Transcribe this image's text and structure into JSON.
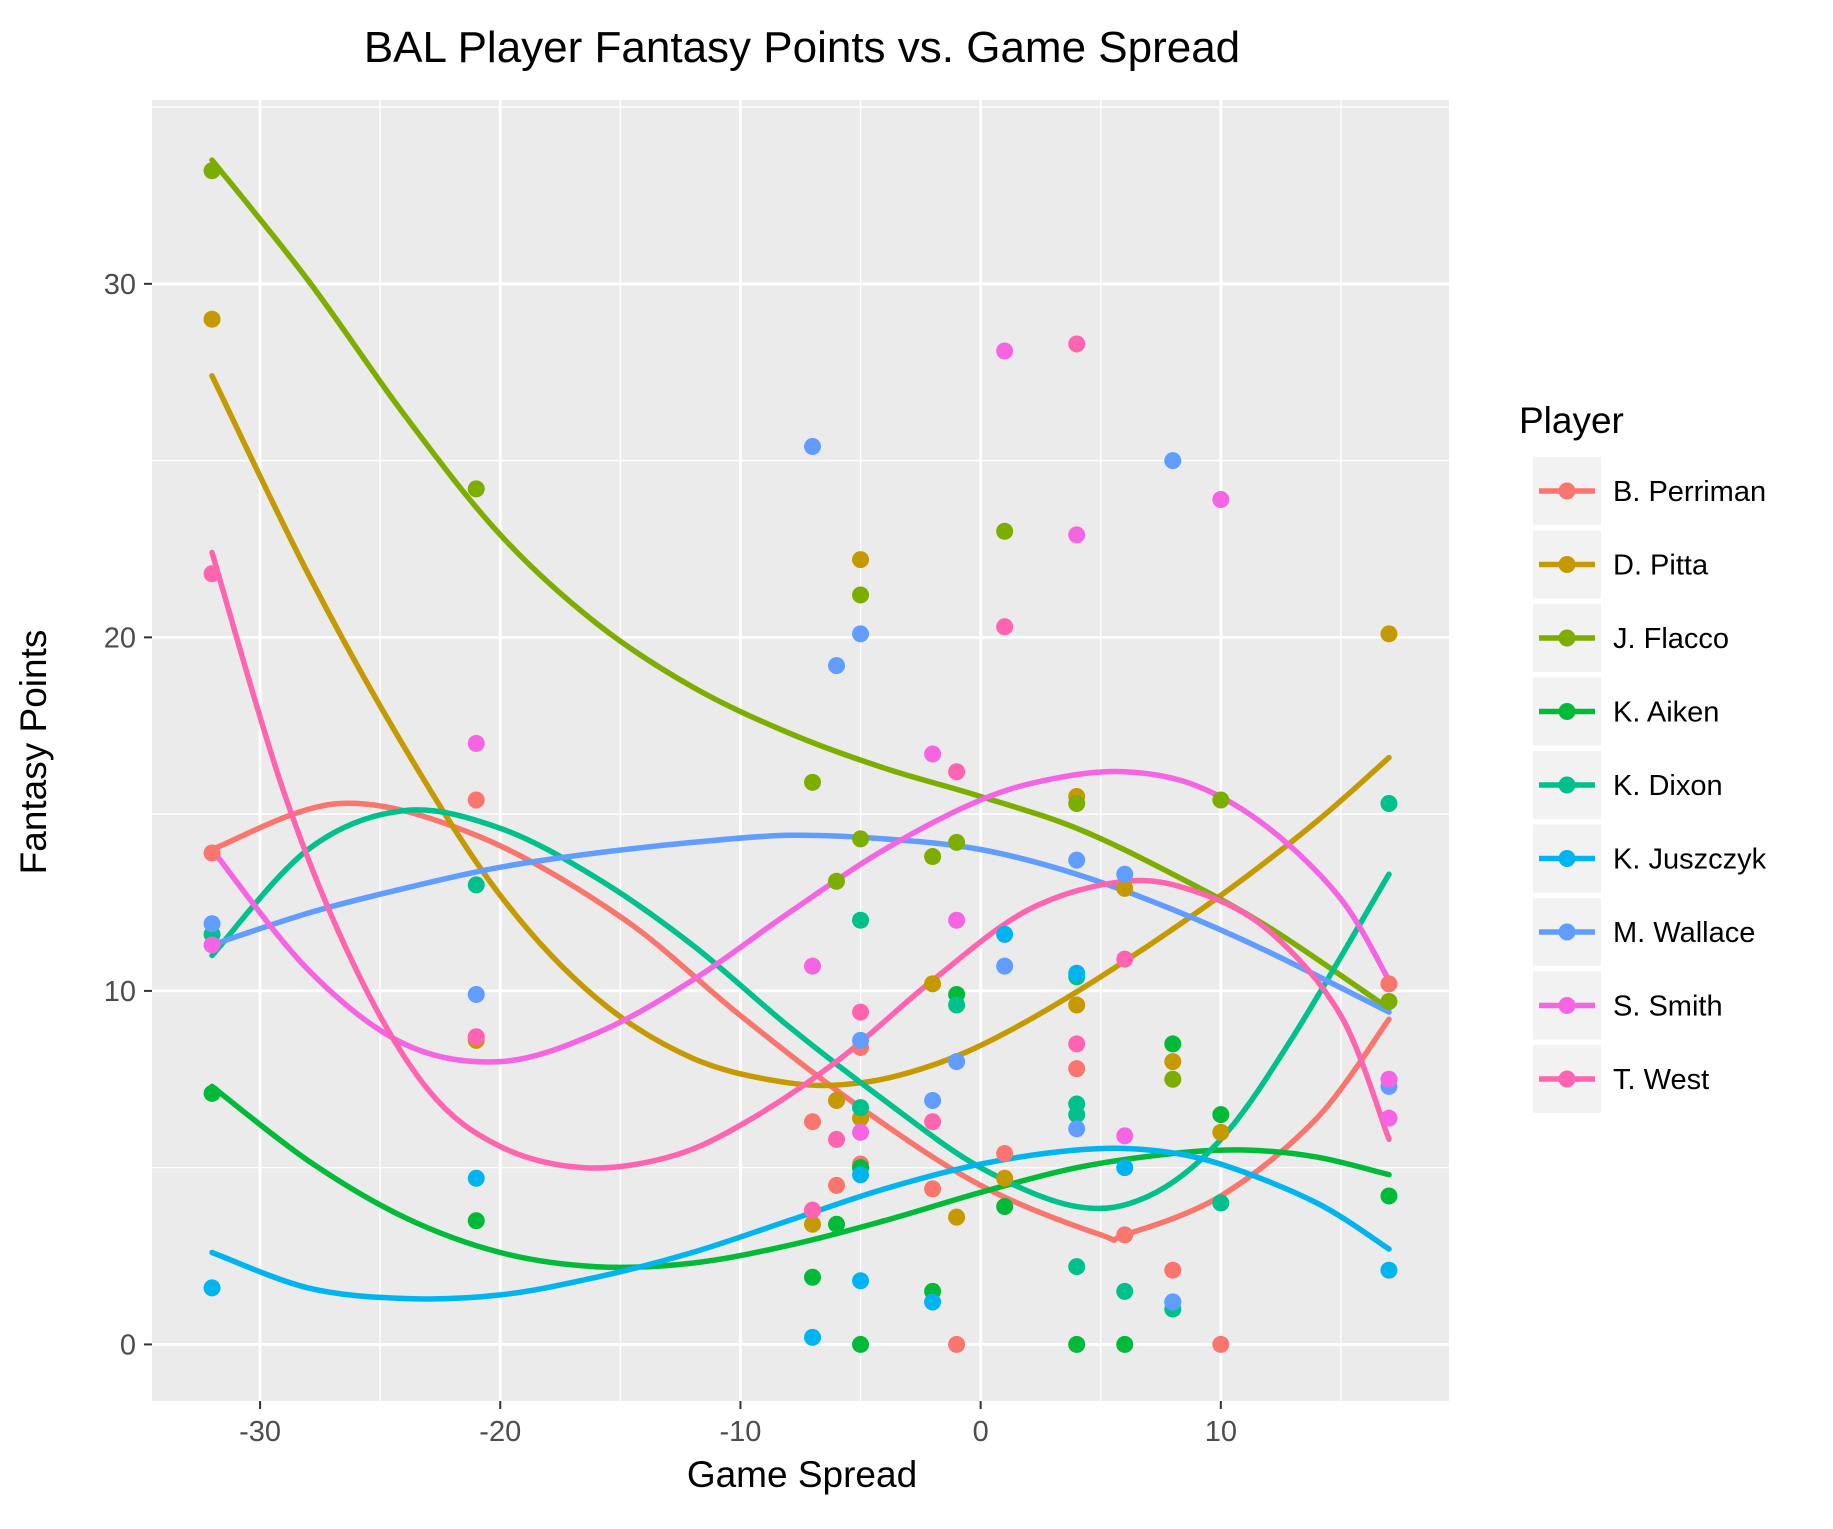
{
  "chart_data": {
    "type": "scatter",
    "title": "BAL Player Fantasy Points vs. Game Spread",
    "xlabel": "Game Spread",
    "ylabel": "Fantasy Points",
    "xlim": [
      -34.5,
      19.5
    ],
    "ylim": [
      -1.6,
      35.2
    ],
    "xticks": [
      -30,
      -20,
      -10,
      0,
      10
    ],
    "yticks": [
      0,
      10,
      20,
      30
    ],
    "grid": true,
    "legend": {
      "title": "Player",
      "position": "right"
    },
    "series": [
      {
        "name": "B. Perriman",
        "color": "#F8766D",
        "points": [
          [
            -32,
            13.9
          ],
          [
            -21,
            15.4
          ],
          [
            -7,
            6.3
          ],
          [
            -6,
            4.5
          ],
          [
            -5,
            8.4
          ],
          [
            -5,
            5.1
          ],
          [
            -2,
            4.4
          ],
          [
            -1,
            0
          ],
          [
            1,
            5.4
          ],
          [
            4,
            7.8
          ],
          [
            6,
            3.1
          ],
          [
            8,
            2.1
          ],
          [
            10,
            0
          ],
          [
            17,
            10.2
          ]
        ],
        "curve": [
          [
            -32,
            14.0
          ],
          [
            -26.7,
            15.3
          ],
          [
            -21,
            14.4
          ],
          [
            -15,
            12.1
          ],
          [
            -10,
            9.3
          ],
          [
            -5,
            6.7
          ],
          [
            0,
            4.5
          ],
          [
            5,
            3.1
          ],
          [
            6,
            3.1
          ],
          [
            10,
            4.2
          ],
          [
            14,
            6.4
          ],
          [
            17,
            9.2
          ]
        ]
      },
      {
        "name": "D. Pitta",
        "color": "#C49A00",
        "points": [
          [
            -32,
            29.0
          ],
          [
            -21,
            8.6
          ],
          [
            -7,
            3.4
          ],
          [
            -6,
            6.9
          ],
          [
            -5,
            6.4
          ],
          [
            -5,
            22.2
          ],
          [
            -2,
            10.2
          ],
          [
            -1,
            3.6
          ],
          [
            1,
            4.7
          ],
          [
            4,
            9.6
          ],
          [
            4,
            15.5
          ],
          [
            6,
            12.9
          ],
          [
            8,
            8.0
          ],
          [
            10,
            6.0
          ],
          [
            17,
            20.1
          ]
        ],
        "curve": [
          [
            -32,
            27.4
          ],
          [
            -28,
            21.8
          ],
          [
            -24,
            16.9
          ],
          [
            -20,
            12.7
          ],
          [
            -16,
            9.8
          ],
          [
            -12,
            8.1
          ],
          [
            -8,
            7.4
          ],
          [
            -5,
            7.4
          ],
          [
            -2,
            7.9
          ],
          [
            1,
            8.8
          ],
          [
            5,
            10.4
          ],
          [
            10,
            12.7
          ],
          [
            14,
            14.8
          ],
          [
            17,
            16.6
          ]
        ]
      },
      {
        "name": "J. Flacco",
        "color": "#7CAE00",
        "points": [
          [
            -32,
            33.2
          ],
          [
            -21,
            24.2
          ],
          [
            -7,
            15.9
          ],
          [
            -6,
            13.1
          ],
          [
            -5,
            21.2
          ],
          [
            -5,
            14.3
          ],
          [
            -2,
            13.8
          ],
          [
            -1,
            14.2
          ],
          [
            1,
            23.0
          ],
          [
            4,
            15.3
          ],
          [
            8,
            7.5
          ],
          [
            10,
            15.4
          ],
          [
            17,
            9.7
          ]
        ],
        "curve": [
          [
            -32,
            33.5
          ],
          [
            -28,
            30.1
          ],
          [
            -24,
            26.3
          ],
          [
            -20,
            22.9
          ],
          [
            -16,
            20.4
          ],
          [
            -12,
            18.6
          ],
          [
            -8,
            17.3
          ],
          [
            -4,
            16.3
          ],
          [
            0,
            15.5
          ],
          [
            4,
            14.6
          ],
          [
            8,
            13.3
          ],
          [
            12,
            11.8
          ],
          [
            17,
            9.5
          ]
        ]
      },
      {
        "name": "K. Aiken",
        "color": "#00BA38",
        "points": [
          [
            -32,
            7.1
          ],
          [
            -21,
            3.5
          ],
          [
            -7,
            1.9
          ],
          [
            -6,
            3.4
          ],
          [
            -5,
            0
          ],
          [
            -5,
            5.0
          ],
          [
            -2,
            1.5
          ],
          [
            -1,
            9.9
          ],
          [
            1,
            3.9
          ],
          [
            4,
            0
          ],
          [
            6,
            0
          ],
          [
            8,
            8.5
          ],
          [
            10,
            6.5
          ],
          [
            17,
            4.2
          ]
        ],
        "curve": [
          [
            -32,
            7.3
          ],
          [
            -28,
            5.2
          ],
          [
            -24,
            3.6
          ],
          [
            -20,
            2.6
          ],
          [
            -16,
            2.2
          ],
          [
            -12,
            2.3
          ],
          [
            -8,
            2.8
          ],
          [
            -4,
            3.5
          ],
          [
            0,
            4.3
          ],
          [
            4,
            5.0
          ],
          [
            8,
            5.4
          ],
          [
            11,
            5.5
          ],
          [
            14,
            5.3
          ],
          [
            17,
            4.8
          ]
        ]
      },
      {
        "name": "K. Dixon",
        "color": "#00C08B",
        "points": [
          [
            -32,
            11.6
          ],
          [
            -21,
            13.0
          ],
          [
            -5,
            12.0
          ],
          [
            -5,
            6.7
          ],
          [
            -1,
            9.6
          ],
          [
            4,
            10.4
          ],
          [
            4,
            6.8
          ],
          [
            4,
            6.5
          ],
          [
            4,
            2.2
          ],
          [
            6,
            1.5
          ],
          [
            8,
            1.0
          ],
          [
            10,
            4.0
          ],
          [
            17,
            15.3
          ]
        ],
        "curve": [
          [
            -32,
            11.0
          ],
          [
            -28,
            14.0
          ],
          [
            -24,
            15.1
          ],
          [
            -20,
            14.6
          ],
          [
            -16,
            13.2
          ],
          [
            -12,
            11.3
          ],
          [
            -8,
            9.0
          ],
          [
            -4,
            6.9
          ],
          [
            0,
            5.0
          ],
          [
            4,
            3.9
          ],
          [
            7,
            4.2
          ],
          [
            10,
            5.8
          ],
          [
            13,
            8.7
          ],
          [
            17,
            13.3
          ]
        ]
      },
      {
        "name": "K. Juszczyk",
        "color": "#00B4EF",
        "points": [
          [
            -32,
            1.6
          ],
          [
            -21,
            4.7
          ],
          [
            -7,
            0.2
          ],
          [
            -5,
            1.8
          ],
          [
            -5,
            4.8
          ],
          [
            -2,
            1.2
          ],
          [
            1,
            11.6
          ],
          [
            4,
            10.5
          ],
          [
            6,
            5.0
          ],
          [
            8,
            1.2
          ],
          [
            17,
            2.1
          ]
        ],
        "curve": [
          [
            -32,
            2.6
          ],
          [
            -28,
            1.6
          ],
          [
            -24,
            1.3
          ],
          [
            -20,
            1.4
          ],
          [
            -16,
            1.9
          ],
          [
            -12,
            2.6
          ],
          [
            -8,
            3.5
          ],
          [
            -4,
            4.4
          ],
          [
            0,
            5.1
          ],
          [
            4,
            5.5
          ],
          [
            7,
            5.5
          ],
          [
            10,
            5.1
          ],
          [
            14,
            4.0
          ],
          [
            17,
            2.7
          ]
        ]
      },
      {
        "name": "M. Wallace",
        "color": "#619CFF",
        "points": [
          [
            -32,
            11.9
          ],
          [
            -21,
            9.9
          ],
          [
            -7,
            25.4
          ],
          [
            -6,
            19.2
          ],
          [
            -5,
            20.1
          ],
          [
            -5,
            8.6
          ],
          [
            -2,
            6.9
          ],
          [
            -1,
            8.0
          ],
          [
            1,
            10.7
          ],
          [
            4,
            13.7
          ],
          [
            4,
            6.1
          ],
          [
            6,
            13.3
          ],
          [
            8,
            25.0
          ],
          [
            8,
            1.2
          ],
          [
            17,
            7.3
          ]
        ],
        "curve": [
          [
            -32,
            11.3
          ],
          [
            -28,
            12.2
          ],
          [
            -24,
            12.9
          ],
          [
            -20,
            13.5
          ],
          [
            -16,
            13.9
          ],
          [
            -12,
            14.2
          ],
          [
            -8,
            14.4
          ],
          [
            -4,
            14.3
          ],
          [
            0,
            14.0
          ],
          [
            4,
            13.3
          ],
          [
            8,
            12.3
          ],
          [
            12,
            11.1
          ],
          [
            17,
            9.4
          ]
        ]
      },
      {
        "name": "S. Smith",
        "color": "#F564E3",
        "points": [
          [
            -32,
            11.3
          ],
          [
            -21,
            17.0
          ],
          [
            -21,
            8.7
          ],
          [
            -7,
            10.7
          ],
          [
            -5,
            6.0
          ],
          [
            -2,
            16.7
          ],
          [
            -1,
            12.0
          ],
          [
            1,
            28.1
          ],
          [
            4,
            22.9
          ],
          [
            6,
            5.9
          ],
          [
            10,
            23.9
          ],
          [
            17,
            6.4
          ],
          [
            17,
            7.5
          ]
        ],
        "curve": [
          [
            -32,
            14.0
          ],
          [
            -28,
            10.6
          ],
          [
            -24,
            8.5
          ],
          [
            -20,
            8.0
          ],
          [
            -16,
            8.8
          ],
          [
            -12,
            10.3
          ],
          [
            -8,
            12.2
          ],
          [
            -4,
            14.0
          ],
          [
            0,
            15.4
          ],
          [
            3,
            16.0
          ],
          [
            6,
            16.2
          ],
          [
            9,
            15.8
          ],
          [
            12,
            14.6
          ],
          [
            15,
            12.6
          ],
          [
            17,
            10.3
          ]
        ]
      },
      {
        "name": "T. West",
        "color": "#FF64B0",
        "points": [
          [
            -32,
            21.8
          ],
          [
            -21,
            8.7
          ],
          [
            -7,
            3.8
          ],
          [
            -6,
            5.8
          ],
          [
            -5,
            9.4
          ],
          [
            -2,
            6.3
          ],
          [
            -1,
            16.2
          ],
          [
            1,
            20.3
          ],
          [
            4,
            28.3
          ],
          [
            4,
            8.5
          ],
          [
            6,
            10.9
          ]
        ],
        "curve": [
          [
            -32,
            22.4
          ],
          [
            -29,
            15.6
          ],
          [
            -26,
            10.6
          ],
          [
            -23,
            7.2
          ],
          [
            -20,
            5.6
          ],
          [
            -16.5,
            5.0
          ],
          [
            -13,
            5.3
          ],
          [
            -10,
            6.2
          ],
          [
            -6,
            8.0
          ],
          [
            -2,
            10.3
          ],
          [
            2,
            12.3
          ],
          [
            6,
            13.1
          ],
          [
            9,
            12.8
          ],
          [
            12,
            11.7
          ],
          [
            15,
            9.3
          ],
          [
            17,
            5.8
          ]
        ]
      }
    ]
  }
}
